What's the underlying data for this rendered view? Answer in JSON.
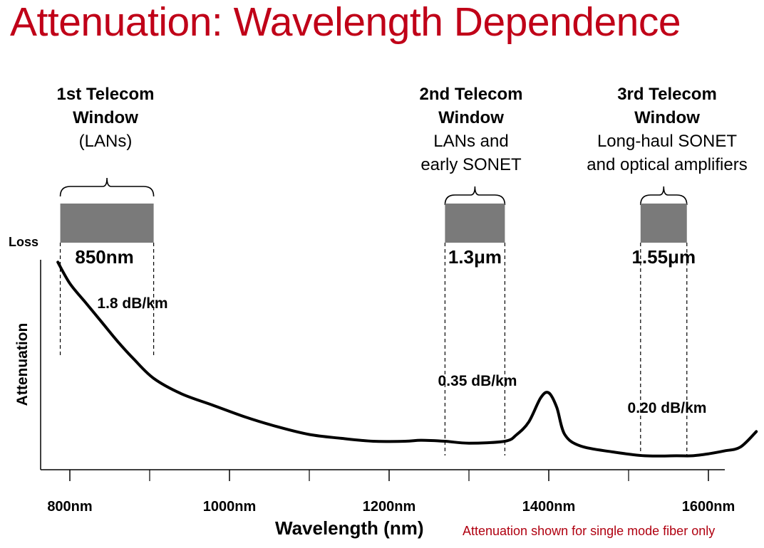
{
  "slide": {
    "title": "Attenuation: Wavelength Dependence"
  },
  "windows": [
    {
      "heading_1": "1st Telecom",
      "heading_2": "Window",
      "desc_1": "(LANs)",
      "desc_2": "",
      "center": "850nm",
      "loss": "1.8 dB/km",
      "range_nm": [
        788,
        905
      ]
    },
    {
      "heading_1": "2nd Telecom",
      "heading_2": "Window",
      "desc_1": "LANs and",
      "desc_2": "early SONET",
      "center": "1.3μm",
      "loss": "0.35 dB/km",
      "range_nm": [
        1270,
        1345
      ]
    },
    {
      "heading_1": "3rd Telecom",
      "heading_2": "Window",
      "desc_1": "Long-haul SONET",
      "desc_2": "and optical amplifiers",
      "center": "1.55μm",
      "loss": "0.20 dB/km",
      "range_nm": [
        1515,
        1573
      ]
    }
  ],
  "colors": {
    "title": "#c00018",
    "window_band": "#7a7a7a",
    "curve": "#000000",
    "footnote": "#b00010"
  },
  "chart_data": {
    "type": "line",
    "title": "",
    "xlabel": "Wavelength (nm)",
    "ylabel": "Attenuation",
    "y_top_label": "Loss",
    "note": "Attenuation shown for single mode fiber only",
    "xlim": [
      750,
      1670
    ],
    "x_tick_labels": [
      "800nm",
      "1000nm",
      "1200nm",
      "1400nm",
      "1600nm"
    ],
    "x_tick_values": [
      800,
      1000,
      1200,
      1400,
      1600
    ],
    "minor_ticks": [
      900,
      1100,
      1300,
      1500
    ],
    "grid": false,
    "series": [
      {
        "x": [
          785,
          800,
          820,
          840,
          860,
          880,
          905,
          940,
          980,
          1020,
          1060,
          1100,
          1140,
          1180,
          1220,
          1240,
          1270,
          1300,
          1345,
          1360,
          1375,
          1390,
          1400,
          1410,
          1420,
          1440,
          1480,
          1520,
          1560,
          1580,
          1600,
          1620,
          1640,
          1660
        ],
        "y": [
          2.2,
          1.98,
          1.78,
          1.58,
          1.38,
          1.2,
          1.0,
          0.84,
          0.72,
          0.6,
          0.5,
          0.42,
          0.38,
          0.35,
          0.35,
          0.36,
          0.35,
          0.33,
          0.35,
          0.42,
          0.55,
          0.8,
          0.85,
          0.7,
          0.42,
          0.3,
          0.24,
          0.2,
          0.2,
          0.2,
          0.22,
          0.25,
          0.29,
          0.45
        ]
      }
    ]
  }
}
